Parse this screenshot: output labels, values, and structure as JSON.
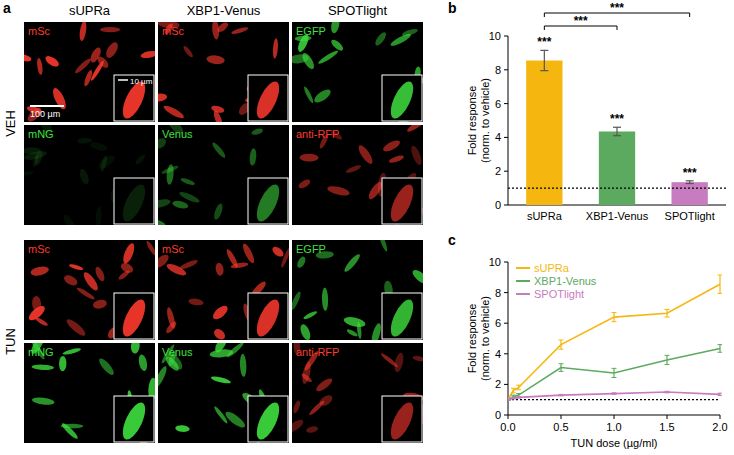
{
  "chart_data": [
    {
      "type": "image_grid",
      "panel_label": "a",
      "columns": [
        "sUPRa",
        "XBP1-Venus",
        "SPOTlight"
      ],
      "rows": [
        "VEH",
        "TUN"
      ],
      "channels": [
        [
          {
            "label": "mSc",
            "color": "#ff3a2e"
          },
          {
            "label": "mSc",
            "color": "#ff3a2e"
          },
          {
            "label": "EGFP",
            "color": "#3fe03f"
          }
        ],
        [
          {
            "label": "mNG",
            "color": "#3fe03f"
          },
          {
            "label": "Venus",
            "color": "#3fe03f"
          },
          {
            "label": "anti-RFP",
            "color": "#ff3a2e"
          }
        ]
      ],
      "scale_bars": [
        "100 µm",
        "10 µm"
      ]
    },
    {
      "type": "bar",
      "panel_label": "b",
      "y_label": "Fold response (norm. to vehicle)",
      "categories": [
        "sUPRa",
        "XBP1-Venus",
        "SPOTlight"
      ],
      "values": [
        8.55,
        4.35,
        1.35
      ],
      "errors": [
        0.6,
        0.25,
        0.08
      ],
      "colors": [
        "#f5b70f",
        "#5caa5f",
        "#c77cc0"
      ],
      "ylim": [
        0,
        10
      ],
      "yticks": [
        0,
        2,
        4,
        6,
        8,
        10
      ],
      "baseline": 1,
      "annotations": [
        "***",
        "***",
        "***"
      ],
      "brackets": [
        {
          "from": 0,
          "to": 1,
          "text": "***"
        },
        {
          "from": 0,
          "to": 2,
          "text": "***"
        }
      ]
    },
    {
      "type": "line",
      "panel_label": "c",
      "x_label": "TUN dose (µg/ml)",
      "y_label": "Fold response (norm. to vehicle)",
      "x": [
        0,
        0.05,
        0.1,
        0.5,
        1.0,
        1.5,
        2.0
      ],
      "series": [
        {
          "name": "sUPRa",
          "color": "#f5b70f",
          "values": [
            1,
            1.6,
            1.8,
            4.6,
            6.4,
            6.65,
            8.55
          ],
          "errors": [
            0.05,
            0.15,
            0.15,
            0.3,
            0.3,
            0.25,
            0.6
          ]
        },
        {
          "name": "XBP1-Venus",
          "color": "#5caa5f",
          "values": [
            1,
            1.2,
            1.3,
            3.1,
            2.75,
            3.6,
            4.35
          ],
          "errors": [
            0.05,
            0.1,
            0.1,
            0.25,
            0.3,
            0.3,
            0.25
          ]
        },
        {
          "name": "SPOTlight",
          "color": "#c77cc0",
          "values": [
            1,
            1.1,
            1.15,
            1.3,
            1.4,
            1.5,
            1.35
          ],
          "errors": [
            0.03,
            0.05,
            0.05,
            0.05,
            0.05,
            0.05,
            0.08
          ]
        }
      ],
      "xlim": [
        0,
        2.0
      ],
      "xticks": [
        {
          "value": 0,
          "label": "0.0"
        },
        {
          "value": 0.5,
          "label": "0.5"
        },
        {
          "value": 1.0,
          "label": "1.0"
        },
        {
          "value": 1.5,
          "label": "1.5"
        },
        {
          "value": 2.0,
          "label": "2.0"
        }
      ],
      "ylim": [
        0,
        10
      ],
      "yticks": [
        0,
        2,
        4,
        6,
        8,
        10
      ],
      "baseline": 1,
      "legend": "top-left"
    }
  ]
}
